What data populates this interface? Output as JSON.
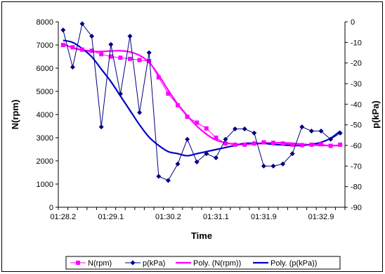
{
  "chart_data": {
    "type": "line",
    "title": "",
    "xlabel": "Time",
    "ylabel": "N(rpm)",
    "y2label": "p(kPa)",
    "x_tick_labels": [
      "01:28.2",
      "01:29.1",
      "01:30.2",
      "01:31.1",
      "01:31.9",
      "01:32.9"
    ],
    "ylim": [
      0,
      8000
    ],
    "yticks": [
      0,
      1000,
      2000,
      3000,
      4000,
      5000,
      6000,
      7000,
      8000
    ],
    "y2lim": [
      -90,
      0
    ],
    "y2ticks": [
      0,
      -10,
      -20,
      -30,
      -40,
      -50,
      -60,
      -70,
      -80,
      -90
    ],
    "grid": false,
    "legend_position": "bottom",
    "series": [
      {
        "name": "N(rpm)",
        "axis": "left",
        "color": "#ff00ff",
        "marker": "square",
        "values": [
          7000,
          6900,
          6800,
          6750,
          6600,
          6500,
          6450,
          6400,
          6350,
          6300,
          5600,
          4900,
          4400,
          3900,
          3650,
          3400,
          3000,
          2750,
          2700,
          2700,
          2750,
          2800,
          2780,
          2750,
          2700,
          2680,
          2700,
          2720,
          2650,
          2700
        ]
      },
      {
        "name": "p(kPa)",
        "axis": "right",
        "color": "#000080",
        "marker": "diamond",
        "values": [
          -4,
          -22,
          -1,
          -7,
          -51,
          -11,
          -35,
          -7,
          -44,
          -15,
          -75,
          -77,
          -69,
          -57,
          -68,
          -64,
          -66,
          -57,
          -52,
          -52,
          -54,
          -70,
          -70,
          -69,
          -64,
          -51,
          -53,
          -53,
          -57,
          -54
        ]
      },
      {
        "name": "Poly. (N(rpm))",
        "axis": "left",
        "color": "#ff00ff",
        "trendline": true,
        "values": [
          7050,
          6880,
          6770,
          6720,
          6720,
          6740,
          6750,
          6700,
          6550,
          6250,
          5700,
          5050,
          4450,
          3950,
          3500,
          3150,
          2900,
          2780,
          2720,
          2710,
          2730,
          2760,
          2780,
          2780,
          2760,
          2720,
          2690,
          2670,
          2660,
          2660
        ]
      },
      {
        "name": "Poly. (p(kPa))",
        "axis": "right",
        "color": "#0000cc",
        "trendline": true,
        "values": [
          -9,
          -10,
          -13,
          -17,
          -23,
          -29,
          -36,
          -43,
          -50,
          -56,
          -60,
          -63,
          -64,
          -65,
          -64,
          -63,
          -62,
          -61,
          -60,
          -59,
          -59,
          -59,
          -59.5,
          -59.8,
          -60,
          -60,
          -59.5,
          -58.5,
          -56.5,
          -53
        ]
      }
    ]
  }
}
